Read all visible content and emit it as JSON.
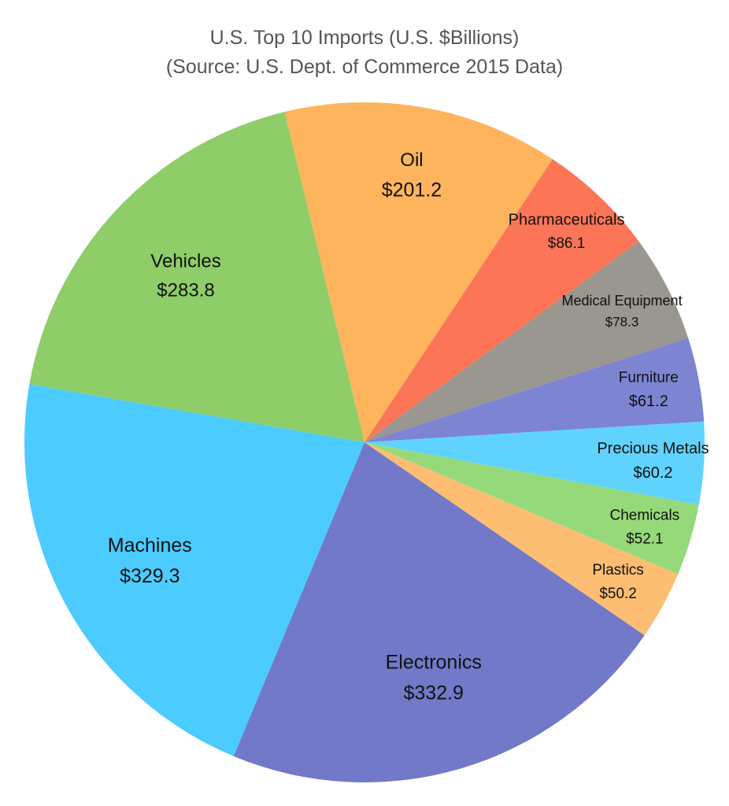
{
  "chart_data": {
    "type": "pie",
    "title": "U.S. Top 10 Imports (U.S. $Billions)",
    "subtitle": "(Source: U.S. Dept. of Commerce 2015 Data)",
    "slices": [
      {
        "name": "Oil",
        "value": 201.2,
        "value_label": "$201.2",
        "color": "#FDB45C"
      },
      {
        "name": "Pharmaceuticals",
        "value": 86.1,
        "value_label": "$86.1",
        "color": "#FC7557"
      },
      {
        "name": "Medical Equipment",
        "value": 78.3,
        "value_label": "$78.3",
        "color": "#9A9690"
      },
      {
        "name": "Furniture",
        "value": 61.2,
        "value_label": "$61.2",
        "color": "#7D84D2"
      },
      {
        "name": "Precious Metals",
        "value": 60.2,
        "value_label": "$60.2",
        "color": "#5FD3FE"
      },
      {
        "name": "Chemicals",
        "value": 52.1,
        "value_label": "$52.1",
        "color": "#96D97A"
      },
      {
        "name": "Plastics",
        "value": 50.2,
        "value_label": "$50.2",
        "color": "#FDBD72"
      },
      {
        "name": "Electronics",
        "value": 332.9,
        "value_label": "$332.9",
        "color": "#7179C8"
      },
      {
        "name": "Machines",
        "value": 329.3,
        "value_label": "$329.3",
        "color": "#4BCBFE"
      },
      {
        "name": "Vehicles",
        "value": 283.8,
        "value_label": "$283.8",
        "color": "#8ECD68"
      }
    ]
  }
}
